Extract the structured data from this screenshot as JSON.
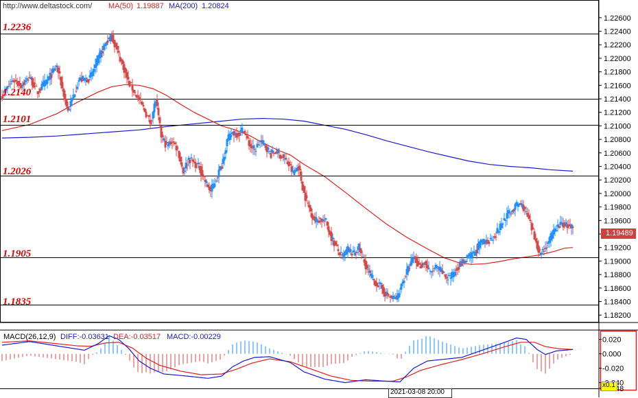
{
  "header": {
    "url": "http://www.deltastock.com/",
    "ma50_label": "MA(50)",
    "ma50_value": "1.19887",
    "ma200_label": "MA(200)",
    "ma200_value": "1.20824"
  },
  "price_panel": {
    "current_price": "1.19489",
    "levels": [
      {
        "label": "1.2236",
        "value": 1.2236
      },
      {
        "label": "1.2140",
        "value": 1.214
      },
      {
        "label": "1.2101",
        "value": 1.2101
      },
      {
        "label": "1.2026",
        "value": 1.2026
      },
      {
        "label": "1.1905",
        "value": 1.1905
      },
      {
        "label": "1.1835",
        "value": 1.1835
      }
    ]
  },
  "macd_panel": {
    "label": "MACD(26,12,9)",
    "diff": "DIFF:-0.03631",
    "dea": "DEA:-0.03517",
    "macd": "MACD:-0.00229",
    "scale_label": "x0.1"
  },
  "footer": {
    "crosshair_time": "2021-03-08 20:00"
  },
  "colors": {
    "up": "#1e90ff",
    "down": "#d44a4a",
    "ma50": "#e02020",
    "ma200": "#1a1ad0",
    "level_text": "#e00000",
    "price_box": "#d04040"
  },
  "chart_data": [
    {
      "type": "candlestick",
      "ylim": [
        1.181,
        1.227
      ],
      "y_tick_labels": [
        "1.22600",
        "1.22400",
        "1.22200",
        "1.22000",
        "1.21800",
        "1.21600",
        "1.21400",
        "1.21200",
        "1.21000",
        "1.20800",
        "1.20600",
        "1.20400",
        "1.20200",
        "1.20000",
        "1.19800",
        "1.19600",
        "1.19400",
        "1.19200",
        "1.19000",
        "1.18800",
        "1.18600",
        "1.18400",
        "1.18200"
      ],
      "y_ticks": [
        1.226,
        1.224,
        1.222,
        1.22,
        1.218,
        1.216,
        1.214,
        1.212,
        1.21,
        1.208,
        1.206,
        1.204,
        1.202,
        1.2,
        1.198,
        1.196,
        1.194,
        1.192,
        1.19,
        1.188,
        1.186,
        1.184,
        1.182
      ],
      "grid": false,
      "close_anchors": [
        [
          0,
          1.2145
        ],
        [
          8,
          1.2168
        ],
        [
          14,
          1.216
        ],
        [
          20,
          1.2172
        ],
        [
          26,
          1.215
        ],
        [
          32,
          1.2165
        ],
        [
          40,
          1.2188
        ],
        [
          48,
          1.2122
        ],
        [
          56,
          1.2168
        ],
        [
          64,
          1.217
        ],
        [
          72,
          1.2208
        ],
        [
          76,
          1.2224
        ],
        [
          80,
          1.2232
        ],
        [
          84,
          1.221
        ],
        [
          88,
          1.219
        ],
        [
          92,
          1.2165
        ],
        [
          96,
          1.2152
        ],
        [
          100,
          1.2138
        ],
        [
          104,
          1.2122
        ],
        [
          108,
          1.2105
        ],
        [
          112,
          1.2138
        ],
        [
          116,
          1.2085
        ],
        [
          120,
          1.207
        ],
        [
          124,
          1.2078
        ],
        [
          128,
          1.2065
        ],
        [
          132,
          1.2032
        ],
        [
          136,
          1.2052
        ],
        [
          140,
          1.2045
        ],
        [
          144,
          1.2038
        ],
        [
          148,
          1.2018
        ],
        [
          152,
          1.2003
        ],
        [
          156,
          1.2022
        ],
        [
          160,
          1.2042
        ],
        [
          164,
          1.2078
        ],
        [
          168,
          1.209
        ],
        [
          172,
          1.2088
        ],
        [
          176,
          1.2095
        ],
        [
          180,
          1.2073
        ],
        [
          184,
          1.2063
        ],
        [
          188,
          1.2078
        ],
        [
          192,
          1.207
        ],
        [
          196,
          1.2058
        ],
        [
          200,
          1.2062
        ],
        [
          204,
          1.2055
        ],
        [
          208,
          1.2045
        ],
        [
          212,
          1.203
        ],
        [
          216,
          1.204
        ],
        [
          220,
          1.2
        ],
        [
          224,
          1.1978
        ],
        [
          228,
          1.196
        ],
        [
          232,
          1.1962
        ],
        [
          236,
          1.1958
        ],
        [
          240,
          1.1935
        ],
        [
          244,
          1.1918
        ],
        [
          248,
          1.1905
        ],
        [
          252,
          1.1918
        ],
        [
          256,
          1.191
        ],
        [
          260,
          1.192
        ],
        [
          264,
          1.1898
        ],
        [
          268,
          1.188
        ],
        [
          272,
          1.1868
        ],
        [
          276,
          1.1862
        ],
        [
          280,
          1.185
        ],
        [
          284,
          1.1845
        ],
        [
          288,
          1.1845
        ],
        [
          292,
          1.187
        ],
        [
          296,
          1.1888
        ],
        [
          300,
          1.1905
        ],
        [
          304,
          1.1892
        ],
        [
          308,
          1.1898
        ],
        [
          312,
          1.1882
        ],
        [
          316,
          1.189
        ],
        [
          320,
          1.1885
        ],
        [
          324,
          1.1875
        ],
        [
          328,
          1.1878
        ],
        [
          332,
          1.1892
        ],
        [
          336,
          1.1898
        ],
        [
          340,
          1.1905
        ],
        [
          344,
          1.191
        ],
        [
          348,
          1.1925
        ],
        [
          352,
          1.1928
        ],
        [
          356,
          1.1932
        ],
        [
          360,
          1.194
        ],
        [
          364,
          1.1955
        ],
        [
          368,
          1.1968
        ],
        [
          372,
          1.1975
        ],
        [
          376,
          1.1985
        ],
        [
          380,
          1.198
        ],
        [
          384,
          1.196
        ],
        [
          388,
          1.1935
        ],
        [
          392,
          1.1912
        ],
        [
          396,
          1.192
        ],
        [
          400,
          1.1935
        ],
        [
          404,
          1.195
        ],
        [
          408,
          1.1955
        ],
        [
          412,
          1.1952
        ],
        [
          416,
          1.1949
        ]
      ],
      "ma50": [
        [
          0,
          1.2093
        ],
        [
          20,
          1.2102
        ],
        [
          40,
          1.2118
        ],
        [
          55,
          1.2135
        ],
        [
          70,
          1.215
        ],
        [
          80,
          1.2158
        ],
        [
          90,
          1.2161
        ],
        [
          100,
          1.216
        ],
        [
          110,
          1.2155
        ],
        [
          120,
          1.2145
        ],
        [
          130,
          1.2132
        ],
        [
          140,
          1.212
        ],
        [
          150,
          1.211
        ],
        [
          160,
          1.21
        ],
        [
          170,
          1.2094
        ],
        [
          180,
          1.2086
        ],
        [
          190,
          1.2075
        ],
        [
          200,
          1.2065
        ],
        [
          210,
          1.2057
        ],
        [
          220,
          1.2043
        ],
        [
          235,
          1.2025
        ],
        [
          250,
          1.2002
        ],
        [
          265,
          1.1978
        ],
        [
          280,
          1.1955
        ],
        [
          295,
          1.1935
        ],
        [
          310,
          1.1918
        ],
        [
          322,
          1.1905
        ],
        [
          332,
          1.1898
        ],
        [
          342,
          1.1895
        ],
        [
          352,
          1.1896
        ],
        [
          362,
          1.1899
        ],
        [
          372,
          1.1903
        ],
        [
          382,
          1.1906
        ],
        [
          392,
          1.1909
        ],
        [
          402,
          1.1914
        ],
        [
          410,
          1.1919
        ],
        [
          416,
          1.192
        ]
      ],
      "ma200": [
        [
          0,
          1.2082
        ],
        [
          20,
          1.2083
        ],
        [
          40,
          1.2085
        ],
        [
          60,
          1.2088
        ],
        [
          80,
          1.2091
        ],
        [
          100,
          1.2094
        ],
        [
          120,
          1.2099
        ],
        [
          140,
          1.2103
        ],
        [
          160,
          1.2107
        ],
        [
          175,
          1.211
        ],
        [
          190,
          1.2111
        ],
        [
          205,
          1.211
        ],
        [
          220,
          1.2107
        ],
        [
          235,
          1.2101
        ],
        [
          250,
          1.2095
        ],
        [
          265,
          1.2087
        ],
        [
          280,
          1.2078
        ],
        [
          295,
          1.207
        ],
        [
          310,
          1.2062
        ],
        [
          325,
          1.2055
        ],
        [
          340,
          1.2048
        ],
        [
          355,
          1.2043
        ],
        [
          370,
          1.204
        ],
        [
          385,
          1.2038
        ],
        [
          400,
          1.2035
        ],
        [
          416,
          1.2033
        ]
      ]
    },
    {
      "type": "line",
      "ylim": [
        -0.048,
        0.032
      ],
      "y_tick_labels": [
        "0.020",
        "0.000",
        "-0.020",
        "-0.040",
        "-0.048"
      ],
      "y_ticks": [
        0.02,
        0.0,
        -0.02,
        -0.04,
        -0.048
      ],
      "diff_anchors": [
        [
          0,
          0.012
        ],
        [
          20,
          0.017
        ],
        [
          40,
          0.011
        ],
        [
          50,
          0.008
        ],
        [
          60,
          0.005
        ],
        [
          70,
          0.014
        ],
        [
          78,
          0.025
        ],
        [
          85,
          0.02
        ],
        [
          92,
          0.008
        ],
        [
          100,
          -0.01
        ],
        [
          108,
          -0.02
        ],
        [
          118,
          -0.028
        ],
        [
          130,
          -0.03
        ],
        [
          140,
          -0.032
        ],
        [
          150,
          -0.034
        ],
        [
          160,
          -0.031
        ],
        [
          168,
          -0.018
        ],
        [
          176,
          -0.01
        ],
        [
          184,
          -0.005
        ],
        [
          195,
          -0.004
        ],
        [
          210,
          -0.012
        ],
        [
          220,
          -0.025
        ],
        [
          235,
          -0.035
        ],
        [
          250,
          -0.04
        ],
        [
          265,
          -0.036
        ],
        [
          280,
          -0.038
        ],
        [
          290,
          -0.039
        ],
        [
          300,
          -0.02
        ],
        [
          310,
          -0.01
        ],
        [
          320,
          -0.008
        ],
        [
          335,
          -0.005
        ],
        [
          350,
          0.005
        ],
        [
          365,
          0.015
        ],
        [
          375,
          0.022
        ],
        [
          382,
          0.02
        ],
        [
          390,
          0.006
        ],
        [
          396,
          -0.001
        ],
        [
          404,
          0.004
        ],
        [
          416,
          0.006
        ]
      ],
      "dea_anchors": [
        [
          0,
          0.016
        ],
        [
          20,
          0.018
        ],
        [
          40,
          0.014
        ],
        [
          55,
          0.011
        ],
        [
          65,
          0.0105
        ],
        [
          75,
          0.015
        ],
        [
          85,
          0.016
        ],
        [
          95,
          0.008
        ],
        [
          105,
          -0.006
        ],
        [
          115,
          -0.016
        ],
        [
          130,
          -0.024
        ],
        [
          145,
          -0.029
        ],
        [
          160,
          -0.028
        ],
        [
          170,
          -0.022
        ],
        [
          182,
          -0.013
        ],
        [
          195,
          -0.007
        ],
        [
          210,
          -0.011
        ],
        [
          225,
          -0.021
        ],
        [
          240,
          -0.031
        ],
        [
          255,
          -0.037
        ],
        [
          270,
          -0.038
        ],
        [
          285,
          -0.038
        ],
        [
          295,
          -0.032
        ],
        [
          305,
          -0.023
        ],
        [
          320,
          -0.015
        ],
        [
          335,
          -0.008
        ],
        [
          350,
          0.0
        ],
        [
          365,
          0.009
        ],
        [
          378,
          0.016
        ],
        [
          388,
          0.016
        ],
        [
          396,
          0.01
        ],
        [
          406,
          0.007
        ],
        [
          416,
          0.006
        ]
      ]
    }
  ]
}
